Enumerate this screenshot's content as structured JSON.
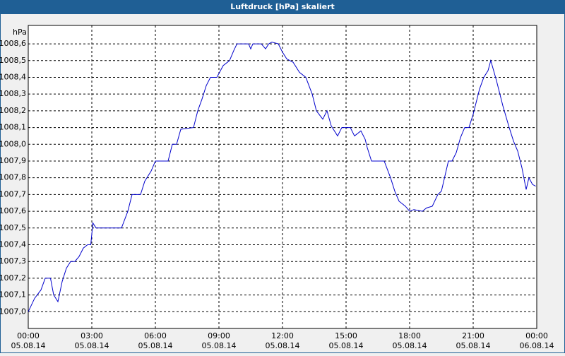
{
  "chart_data": {
    "type": "line",
    "title": "Luftdruck [hPa] skaliert",
    "y_unit": "hPa",
    "x": [
      0,
      0.3,
      0.6,
      0.8,
      1.05,
      1.2,
      1.4,
      1.6,
      1.8,
      2.0,
      2.2,
      2.4,
      2.6,
      2.8,
      2.95,
      3.05,
      3.2,
      4.4,
      4.7,
      4.9,
      5.3,
      5.5,
      5.8,
      6.0,
      6.6,
      6.8,
      7.0,
      7.2,
      7.8,
      8.0,
      8.2,
      8.4,
      8.6,
      8.9,
      9.2,
      9.5,
      9.7,
      9.85,
      10.4,
      10.5,
      10.6,
      11.0,
      11.2,
      11.35,
      11.5,
      11.8,
      12.0,
      12.2,
      12.5,
      12.8,
      13.1,
      13.4,
      13.6,
      13.9,
      14.1,
      14.3,
      14.6,
      14.8,
      15.2,
      15.4,
      15.7,
      15.9,
      16.0,
      16.2,
      16.8,
      17.1,
      17.3,
      17.5,
      17.8,
      18.0,
      18.2,
      18.6,
      18.8,
      19.07,
      19.33,
      19.5,
      19.83,
      20.0,
      20.2,
      20.4,
      20.6,
      20.8,
      21.0,
      21.3,
      21.5,
      21.7,
      21.83,
      22.1,
      22.4,
      22.7,
      22.9,
      23.1,
      23.3,
      23.5,
      23.63,
      23.8,
      23.95
    ],
    "series": [
      {
        "name": "Luftdruck",
        "color": "#0000cc",
        "values": [
          1007.0,
          1007.08,
          1007.13,
          1007.2,
          1007.2,
          1007.1,
          1007.06,
          1007.18,
          1007.26,
          1007.3,
          1007.3,
          1007.33,
          1007.38,
          1007.4,
          1007.4,
          1007.53,
          1007.5,
          1007.5,
          1007.6,
          1007.7,
          1007.7,
          1007.78,
          1007.84,
          1007.9,
          1007.9,
          1008.0,
          1008.0,
          1008.09,
          1008.1,
          1008.2,
          1008.27,
          1008.35,
          1008.4,
          1008.4,
          1008.47,
          1008.5,
          1008.56,
          1008.6,
          1008.6,
          1008.57,
          1008.6,
          1008.6,
          1008.57,
          1008.6,
          1008.61,
          1008.6,
          1008.55,
          1008.51,
          1008.49,
          1008.43,
          1008.4,
          1008.3,
          1008.2,
          1008.15,
          1008.2,
          1008.11,
          1008.05,
          1008.1,
          1008.1,
          1008.05,
          1008.08,
          1008.03,
          1007.98,
          1007.9,
          1007.9,
          1007.8,
          1007.72,
          1007.66,
          1007.63,
          1007.6,
          1007.61,
          1007.6,
          1007.62,
          1007.63,
          1007.7,
          1007.72,
          1007.9,
          1007.9,
          1007.95,
          1008.04,
          1008.1,
          1008.1,
          1008.18,
          1008.33,
          1008.4,
          1008.44,
          1008.5,
          1008.38,
          1008.23,
          1008.1,
          1008.02,
          1007.96,
          1007.86,
          1007.73,
          1007.8,
          1007.76,
          1007.75
        ]
      }
    ],
    "xlim": [
      0,
      24
    ],
    "xticks": [
      {
        "value": 0,
        "label": "00:00"
      },
      {
        "value": 3,
        "label": "03:00"
      },
      {
        "value": 6,
        "label": "06:00"
      },
      {
        "value": 9,
        "label": "09:00"
      },
      {
        "value": 12,
        "label": "12:00"
      },
      {
        "value": 15,
        "label": "15:00"
      },
      {
        "value": 18,
        "label": "18:00"
      },
      {
        "value": 21,
        "label": "21:00"
      },
      {
        "value": 24,
        "label": "00:00"
      }
    ],
    "xtick_dates": [
      "05.08.14",
      "05.08.14",
      "05.08.14",
      "05.08.14",
      "05.08.14",
      "05.08.14",
      "05.08.14",
      "05.08.14",
      "06.08.14"
    ],
    "ylim": [
      1006.9,
      1008.71
    ],
    "yticks": [
      {
        "value": 1007.0,
        "label": "1007,0"
      },
      {
        "value": 1007.1,
        "label": "1007,1"
      },
      {
        "value": 1007.2,
        "label": "1007,2"
      },
      {
        "value": 1007.3,
        "label": "1007,3"
      },
      {
        "value": 1007.4,
        "label": "1007,4"
      },
      {
        "value": 1007.5,
        "label": "1007,5"
      },
      {
        "value": 1007.6,
        "label": "1007,6"
      },
      {
        "value": 1007.7,
        "label": "1007,7"
      },
      {
        "value": 1007.8,
        "label": "1007,8"
      },
      {
        "value": 1007.9,
        "label": "1007,9"
      },
      {
        "value": 1008.0,
        "label": "1008,0"
      },
      {
        "value": 1008.1,
        "label": "1008,1"
      },
      {
        "value": 1008.2,
        "label": "1008,2"
      },
      {
        "value": 1008.3,
        "label": "1008,3"
      },
      {
        "value": 1008.4,
        "label": "1008,4"
      },
      {
        "value": 1008.5,
        "label": "1008,5"
      },
      {
        "value": 1008.6,
        "label": "1008,6"
      }
    ],
    "grid": true
  }
}
